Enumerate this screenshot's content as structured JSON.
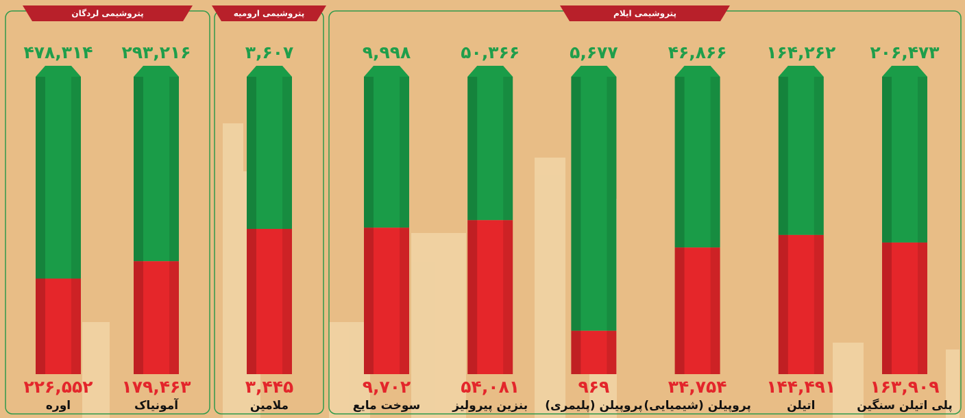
{
  "chart_data": [
    {
      "type": "bar",
      "title": "پتروشیمی لردگان",
      "categories": [
        "آمونیاک",
        "اوره"
      ],
      "series": [
        {
          "color": "#1a9c48",
          "values": [
            293216,
            478314
          ],
          "value_labels": [
            "۲۹۳,۲۱۶",
            "۴۷۸,۳۱۴"
          ]
        },
        {
          "color": "#e5262a",
          "values": [
            179463,
            226552
          ],
          "value_labels": [
            "۱۷۹,۴۶۳",
            "۲۲۶,۵۵۲"
          ]
        }
      ]
    },
    {
      "type": "bar",
      "title": "پتروشیمی ارومیه",
      "categories": [
        "ملامین"
      ],
      "series": [
        {
          "color": "#1a9c48",
          "values": [
            3607
          ],
          "value_labels": [
            "۳,۶۰۷"
          ]
        },
        {
          "color": "#e5262a",
          "values": [
            3445
          ],
          "value_labels": [
            "۳,۴۴۵"
          ]
        }
      ]
    },
    {
      "type": "bar",
      "title": "پتروشیمی ایلام",
      "categories": [
        "پلی اتیلن سنگین",
        "اتیلن",
        "پروپیلن (شیمیایی)",
        "پروپیلن (پلیمری)",
        "بنزین پیرولیز",
        "سوخت مایع"
      ],
      "series": [
        {
          "color": "#1a9c48",
          "values": [
            206473,
            164262,
            46866,
            5677,
            50366,
            9998
          ],
          "value_labels": [
            "۲۰۶,۴۷۳",
            "۱۶۴,۲۶۲",
            "۴۶,۸۶۶",
            "۵,۶۷۷",
            "۵۰,۳۶۶",
            "۹,۹۹۸"
          ]
        },
        {
          "color": "#e5262a",
          "values": [
            163909,
            144491,
            34754,
            969,
            54081,
            9702
          ],
          "value_labels": [
            "۱۶۳,۹۰۹",
            "۱۴۴,۴۹۱",
            "۳۴,۷۵۴",
            "۹۶۹",
            "۵۴,۰۸۱",
            "۹,۷۰۲"
          ]
        }
      ]
    }
  ]
}
